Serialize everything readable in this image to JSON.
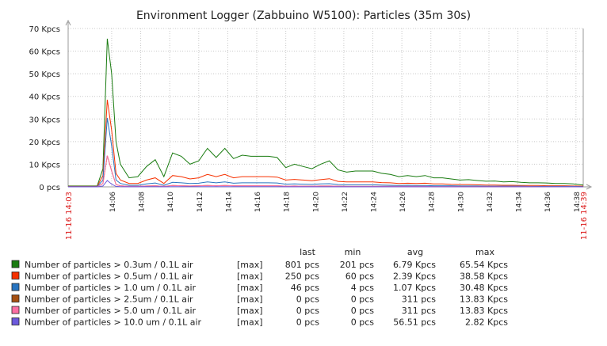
{
  "chart_data": {
    "type": "line",
    "title": "Environment Logger (Zabbuino W5100): Particles (35m 30s)",
    "y_ticks": [
      "0 pcs",
      "10 Kpcs",
      "20 Kpcs",
      "30 Kpcs",
      "40 Kpcs",
      "50 Kpcs",
      "60 Kpcs",
      "70 Kpcs"
    ],
    "ylim_kpcs": [
      0,
      70
    ],
    "x_ticks": [
      "14:06",
      "14:08",
      "14:10",
      "14:12",
      "14:14",
      "14:16",
      "14:18",
      "14:20",
      "14:22",
      "14:24",
      "14:26",
      "14:28",
      "14:30",
      "14:32",
      "14:34",
      "14:36",
      "14:38"
    ],
    "x_range_labels": [
      "11-16 14:03",
      "11-16 14:39"
    ],
    "x_range_minutes": [
      0,
      35.5
    ],
    "grid": true,
    "legend_headers": [
      "last",
      "min",
      "avg",
      "max"
    ],
    "series": [
      {
        "name": "Number of particles > 0.3um / 0.1L air",
        "func": "[max]",
        "last": "801 pcs",
        "min": "201 pcs",
        "avg": "6.79 Kpcs",
        "max": "65.54 Kpcs",
        "color": "#1a7c11",
        "x": [
          0,
          2,
          2.4,
          2.7,
          3.0,
          3.3,
          3.6,
          4.2,
          4.8,
          5.4,
          6.0,
          6.6,
          7.2,
          7.8,
          8.4,
          9.0,
          9.6,
          10.2,
          10.8,
          11.4,
          12.0,
          12.6,
          13.2,
          13.8,
          14.4,
          15.0,
          15.6,
          16.2,
          16.8,
          17.4,
          18.0,
          18.6,
          19.2,
          19.8,
          20.4,
          21.0,
          21.6,
          22.2,
          22.8,
          23.4,
          24.0,
          24.6,
          25.2,
          25.8,
          26.4,
          27.0,
          27.6,
          28.2,
          28.8,
          29.4,
          30.0,
          30.6,
          31.2,
          31.8,
          32.4,
          33.0,
          33.6,
          34.2,
          34.8,
          35.5
        ],
        "y": [
          0.4,
          0.4,
          8,
          65.5,
          50,
          20,
          10,
          4,
          4.5,
          9,
          12,
          4.5,
          15,
          13.5,
          10,
          11.5,
          17,
          13,
          17,
          12.5,
          14,
          13.5,
          13.5,
          13.5,
          13,
          8.5,
          10,
          9,
          8,
          10,
          11.5,
          7.5,
          6.5,
          7,
          7,
          7,
          6,
          5.5,
          4.5,
          5,
          4.5,
          5,
          4,
          4,
          3.5,
          3,
          3.2,
          2.8,
          2.5,
          2.6,
          2.2,
          2.3,
          2.0,
          1.8,
          1.8,
          1.7,
          1.5,
          1.5,
          1.3,
          0.8
        ]
      },
      {
        "name": "Number of particles > 0.5um / 0.1L air",
        "func": "[max]",
        "last": "250 pcs",
        "min": "60 pcs",
        "avg": "2.39 Kpcs",
        "max": "38.58 Kpcs",
        "color": "#f63100",
        "x": [
          0,
          2,
          2.4,
          2.7,
          3.0,
          3.3,
          3.6,
          4.2,
          4.8,
          5.4,
          6.0,
          6.6,
          7.2,
          7.8,
          8.4,
          9.0,
          9.6,
          10.2,
          10.8,
          11.4,
          12.0,
          12.6,
          13.2,
          13.8,
          14.4,
          15.0,
          15.6,
          16.2,
          16.8,
          17.4,
          18.0,
          18.6,
          19.2,
          19.8,
          20.4,
          21.0,
          21.6,
          22.2,
          22.8,
          23.4,
          24.0,
          24.6,
          25.2,
          25.8,
          26.4,
          27.0,
          27.6,
          28.2,
          28.8,
          29.4,
          30.0,
          30.6,
          31.2,
          31.8,
          32.4,
          33.0,
          33.6,
          34.2,
          34.8,
          35.5
        ],
        "y": [
          0.2,
          0.2,
          5,
          38.5,
          25,
          6,
          3,
          1.5,
          1.5,
          3,
          4,
          1.5,
          5,
          4.5,
          3.5,
          4,
          5.5,
          4.5,
          5.5,
          4,
          4.5,
          4.5,
          4.5,
          4.5,
          4.3,
          3,
          3.3,
          3,
          2.7,
          3.2,
          3.6,
          2.4,
          2.2,
          2.2,
          2.2,
          2.2,
          1.9,
          1.8,
          1.5,
          1.6,
          1.5,
          1.6,
          1.3,
          1.3,
          1.1,
          1.0,
          1.0,
          0.9,
          0.8,
          0.8,
          0.7,
          0.7,
          0.6,
          0.6,
          0.6,
          0.5,
          0.5,
          0.5,
          0.4,
          0.3
        ]
      },
      {
        "name": "Number of particles > 1.0 um / 0.1L air",
        "func": "[max]",
        "last": "46 pcs",
        "min": "4 pcs",
        "avg": "1.07 Kpcs",
        "max": "30.48 Kpcs",
        "color": "#2774c0",
        "x": [
          0,
          2,
          2.4,
          2.7,
          3.0,
          3.3,
          3.6,
          4.2,
          4.8,
          5.4,
          6.0,
          6.6,
          7.2,
          7.8,
          8.4,
          9.0,
          9.6,
          10.2,
          10.8,
          11.4,
          12.0,
          12.6,
          13.2,
          13.8,
          14.4,
          15.0,
          15.6,
          16.2,
          16.8,
          17.4,
          18.0,
          18.6,
          19.2,
          19.8,
          20.4,
          21.0,
          21.6,
          22.2,
          22.8,
          23.4,
          24.0,
          24.6,
          25.2,
          25.8,
          26.4,
          27.0,
          27.6,
          28.2,
          28.8,
          29.4,
          30.0,
          30.6,
          31.2,
          31.8,
          32.4,
          33.0,
          33.6,
          34.2,
          34.8,
          35.5
        ],
        "y": [
          0.1,
          0.1,
          3,
          30.5,
          18,
          3,
          1.5,
          0.7,
          0.7,
          1.3,
          1.7,
          0.7,
          2,
          1.8,
          1.5,
          1.6,
          2.2,
          1.8,
          2.2,
          1.6,
          1.8,
          1.8,
          1.8,
          1.8,
          1.7,
          1.2,
          1.3,
          1.2,
          1.1,
          1.3,
          1.4,
          1.0,
          0.9,
          0.9,
          0.9,
          0.9,
          0.8,
          0.7,
          0.6,
          0.7,
          0.6,
          0.6,
          0.5,
          0.5,
          0.5,
          0.4,
          0.4,
          0.4,
          0.3,
          0.3,
          0.3,
          0.3,
          0.3,
          0.2,
          0.2,
          0.2,
          0.2,
          0.2,
          0.2,
          0.05
        ]
      },
      {
        "name": "Number of particles > 2.5um / 0.1L air",
        "func": "[max]",
        "last": "0 pcs",
        "min": "0 pcs",
        "avg": "311 pcs",
        "max": "13.83 Kpcs",
        "color": "#a54f10",
        "x": [
          0,
          2,
          2.4,
          2.7,
          3.0,
          3.3,
          3.6,
          4.2,
          4.8,
          5.4,
          6.0,
          6.6,
          7.2,
          7.8,
          8.4,
          9.0,
          9.6,
          10.2,
          10.8,
          11.4,
          12.0,
          12.6,
          13.2,
          13.8,
          14.4,
          15.0,
          15.6,
          16.2,
          16.8,
          17.4,
          18.0,
          18.6,
          19.2,
          19.8,
          20.4,
          21.0,
          21.6,
          22.2,
          22.8,
          23.4,
          24.0,
          24.6,
          25.2,
          25.8,
          26.4,
          27.0,
          27.6,
          28.2,
          28.8,
          29.4,
          30.0,
          30.6,
          31.2,
          31.8,
          32.4,
          33.0,
          33.6,
          34.2,
          34.8,
          35.5
        ],
        "y": [
          0,
          0,
          1.5,
          13.8,
          7,
          1,
          0.5,
          0.2,
          0.2,
          0.4,
          0.5,
          0.2,
          0.6,
          0.5,
          0.4,
          0.5,
          0.6,
          0.5,
          0.6,
          0.5,
          0.5,
          0.5,
          0.5,
          0.5,
          0.5,
          0.3,
          0.4,
          0.3,
          0.3,
          0.4,
          0.4,
          0.3,
          0.2,
          0.2,
          0.2,
          0.2,
          0.2,
          0.2,
          0.2,
          0.2,
          0.2,
          0.2,
          0.1,
          0.1,
          0.1,
          0.1,
          0.1,
          0.1,
          0.1,
          0.1,
          0.1,
          0.1,
          0.1,
          0.1,
          0.05,
          0.05,
          0.05,
          0.05,
          0.05,
          0
        ]
      },
      {
        "name": "Number of particles > 5.0 um / 0.1L air",
        "func": "[max]",
        "last": "0 pcs",
        "min": "0 pcs",
        "avg": "311 pcs",
        "max": "13.83 Kpcs",
        "color": "#fc6ea3",
        "x": [
          0,
          2,
          2.4,
          2.7,
          3.0,
          3.3,
          3.6,
          4.2,
          4.8,
          5.4,
          6.0,
          6.6,
          7.2,
          7.8,
          8.4,
          9.0,
          9.6,
          10.2,
          10.8,
          11.4,
          12.0,
          12.6,
          13.2,
          13.8,
          14.4,
          15.0,
          15.6,
          16.2,
          16.8,
          17.4,
          18.0,
          18.6,
          19.2,
          19.8,
          20.4,
          21.0,
          21.6,
          22.2,
          22.8,
          23.4,
          24.0,
          24.6,
          25.2,
          25.8,
          26.4,
          27.0,
          27.6,
          28.2,
          28.8,
          29.4,
          30.0,
          30.6,
          31.2,
          31.8,
          32.4,
          33.0,
          33.6,
          34.2,
          34.8,
          35.5
        ],
        "y": [
          0,
          0,
          1.5,
          13.8,
          7,
          1,
          0.5,
          0.2,
          0.2,
          0.4,
          0.5,
          0.2,
          0.6,
          0.5,
          0.4,
          0.5,
          0.6,
          0.5,
          0.6,
          0.5,
          0.5,
          0.5,
          0.5,
          0.5,
          0.5,
          0.3,
          0.4,
          0.3,
          0.3,
          0.4,
          0.4,
          0.3,
          0.2,
          0.2,
          0.2,
          0.2,
          0.2,
          0.2,
          0.2,
          0.2,
          0.2,
          0.2,
          0.1,
          0.1,
          0.1,
          0.1,
          0.1,
          0.1,
          0.1,
          0.1,
          0.1,
          0.1,
          0.1,
          0.1,
          0.05,
          0.05,
          0.05,
          0.05,
          0.05,
          0
        ]
      },
      {
        "name": "Number of particles > 10.0 um / 0.1L air",
        "func": "[max]",
        "last": "0 pcs",
        "min": "0 pcs",
        "avg": "56.51 pcs",
        "max": "2.82 Kpcs",
        "color": "#6c59dc",
        "x": [
          0,
          2,
          2.4,
          2.7,
          3.0,
          3.3,
          3.6,
          4.2,
          4.8,
          5.4,
          6.0,
          6.6,
          7.2,
          7.8,
          8.4,
          9.0,
          9.6,
          10.2,
          10.8,
          11.4,
          12.0,
          12.6,
          13.2,
          13.8,
          14.4,
          15.0,
          15.6,
          16.2,
          16.8,
          17.4,
          18.0,
          18.6,
          19.2,
          19.8,
          20.4,
          21.0,
          21.6,
          22.2,
          22.8,
          23.4,
          24.0,
          24.6,
          25.2,
          25.8,
          26.4,
          27.0,
          27.6,
          28.2,
          28.8,
          29.4,
          30.0,
          30.6,
          31.2,
          31.8,
          32.4,
          33.0,
          33.6,
          34.2,
          34.8,
          35.5
        ],
        "y": [
          0,
          0,
          0.4,
          2.8,
          1.2,
          0.2,
          0.1,
          0.05,
          0.05,
          0.1,
          0.1,
          0.05,
          0.1,
          0.1,
          0.1,
          0.1,
          0.1,
          0.1,
          0.1,
          0.1,
          0.1,
          0.1,
          0.1,
          0.1,
          0.1,
          0.05,
          0.05,
          0.05,
          0.05,
          0.05,
          0.05,
          0.05,
          0.05,
          0.05,
          0.05,
          0.05,
          0.05,
          0.05,
          0.05,
          0.05,
          0.05,
          0.05,
          0.02,
          0.02,
          0.02,
          0.02,
          0.02,
          0.02,
          0.02,
          0.02,
          0.02,
          0.02,
          0.02,
          0.02,
          0.02,
          0.02,
          0.02,
          0.02,
          0.02,
          0
        ]
      }
    ]
  }
}
